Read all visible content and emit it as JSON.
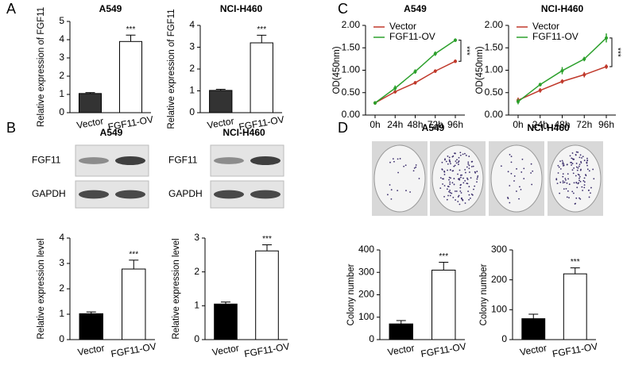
{
  "panel_labels": [
    "A",
    "B",
    "C",
    "D"
  ],
  "blots": [
    {
      "title": "A549",
      "rows": [
        "FGF11",
        "GAPDH"
      ]
    },
    {
      "title": "NCI-H460",
      "rows": [
        "FGF11",
        "GAPDH"
      ]
    }
  ],
  "colony_titles": [
    "A549",
    "NCI-H460"
  ],
  "chart_data": [
    {
      "type": "bar",
      "title": "A549",
      "ylabel": "Relative expression of FGF11",
      "categories": [
        "Vector",
        "FGF11-OV"
      ],
      "values": [
        1.05,
        3.9
      ],
      "errors": [
        0.05,
        0.35
      ],
      "colors": [
        "#333333",
        "#ffffff"
      ],
      "annotation": "***",
      "ylim": [
        0,
        5
      ],
      "yticks": [
        0,
        1,
        2,
        3,
        4,
        5
      ]
    },
    {
      "type": "bar",
      "title": "NCI-H460",
      "ylabel": "Relative expression of FGF11",
      "categories": [
        "Vector",
        "FGF11-OV"
      ],
      "values": [
        1.02,
        3.2
      ],
      "errors": [
        0.05,
        0.35
      ],
      "colors": [
        "#333333",
        "#ffffff"
      ],
      "annotation": "***",
      "ylim": [
        0,
        4
      ],
      "yticks": [
        0,
        1,
        2,
        3,
        4
      ]
    },
    {
      "type": "bar",
      "ylabel": "Relative expression level",
      "categories": [
        "Vector",
        "FGF11-OV"
      ],
      "values": [
        1.02,
        2.78
      ],
      "errors": [
        0.07,
        0.35
      ],
      "colors": [
        "#000000",
        "#ffffff"
      ],
      "annotation": "***",
      "ylim": [
        0,
        4
      ],
      "yticks": [
        0,
        1,
        2,
        3,
        4
      ]
    },
    {
      "type": "bar",
      "ylabel": "Relative expression level",
      "categories": [
        "Vector",
        "FGF11-OV"
      ],
      "values": [
        1.05,
        2.62
      ],
      "errors": [
        0.06,
        0.18
      ],
      "colors": [
        "#000000",
        "#ffffff"
      ],
      "annotation": "***",
      "ylim": [
        0,
        3
      ],
      "yticks": [
        0,
        1,
        2,
        3
      ]
    },
    {
      "type": "line",
      "title": "A549",
      "ylabel": "OD(450nm)",
      "categories": [
        "0h",
        "24h",
        "48h",
        "72h",
        "96h"
      ],
      "legend": "upper left",
      "annotation": "***",
      "series": [
        {
          "name": "Vector",
          "color": "#c0392b",
          "values": [
            0.27,
            0.52,
            0.72,
            0.98,
            1.2
          ],
          "errors": [
            0.04,
            0.04,
            0.04,
            0.04,
            0.04
          ]
        },
        {
          "name": "FGF11-OV",
          "color": "#2ca02c",
          "values": [
            0.27,
            0.6,
            0.97,
            1.37,
            1.67
          ],
          "errors": [
            0.04,
            0.06,
            0.05,
            0.05,
            0.04
          ]
        }
      ],
      "ylim": [
        0,
        2
      ],
      "yticks": [
        {
          "value": 0,
          "label": "0.00"
        },
        {
          "value": 0.5,
          "label": "0.50"
        },
        {
          "value": 1,
          "label": "1.00"
        },
        {
          "value": 1.5,
          "label": "1.50"
        },
        {
          "value": 2,
          "label": "2.00"
        }
      ]
    },
    {
      "type": "line",
      "title": "NCI-H460",
      "ylabel": "OD(450nm)",
      "categories": [
        "0h",
        "24h",
        "48h",
        "72h",
        "96h"
      ],
      "legend": "upper left",
      "annotation": "***",
      "series": [
        {
          "name": "Vector",
          "color": "#c0392b",
          "values": [
            0.33,
            0.55,
            0.75,
            0.9,
            1.08
          ],
          "errors": [
            0.06,
            0.05,
            0.05,
            0.06,
            0.05
          ]
        },
        {
          "name": "FGF11-OV",
          "color": "#2ca02c",
          "values": [
            0.3,
            0.68,
            0.99,
            1.25,
            1.72
          ],
          "errors": [
            0.06,
            0.04,
            0.08,
            0.05,
            0.1
          ]
        }
      ],
      "ylim": [
        0,
        2
      ],
      "yticks": [
        {
          "value": 0,
          "label": "0.00"
        },
        {
          "value": 0.5,
          "label": "0.50"
        },
        {
          "value": 1,
          "label": "1.00"
        },
        {
          "value": 1.5,
          "label": "1.50"
        },
        {
          "value": 2,
          "label": "2.00"
        }
      ]
    },
    {
      "type": "bar",
      "ylabel": "Colony number",
      "categories": [
        "Vector",
        "FGF11-OV"
      ],
      "values": [
        70,
        310
      ],
      "errors": [
        15,
        35
      ],
      "colors": [
        "#000000",
        "#ffffff"
      ],
      "annotation": "***",
      "ylim": [
        0,
        400
      ],
      "yticks": [
        0,
        100,
        200,
        300,
        400
      ]
    },
    {
      "type": "bar",
      "ylabel": "Colony number",
      "categories": [
        "Vector",
        "FGF11-OV"
      ],
      "values": [
        70,
        220
      ],
      "errors": [
        15,
        20
      ],
      "colors": [
        "#000000",
        "#ffffff"
      ],
      "annotation": "***",
      "ylim": [
        0,
        300
      ],
      "yticks": [
        0,
        100,
        200,
        300
      ]
    }
  ]
}
